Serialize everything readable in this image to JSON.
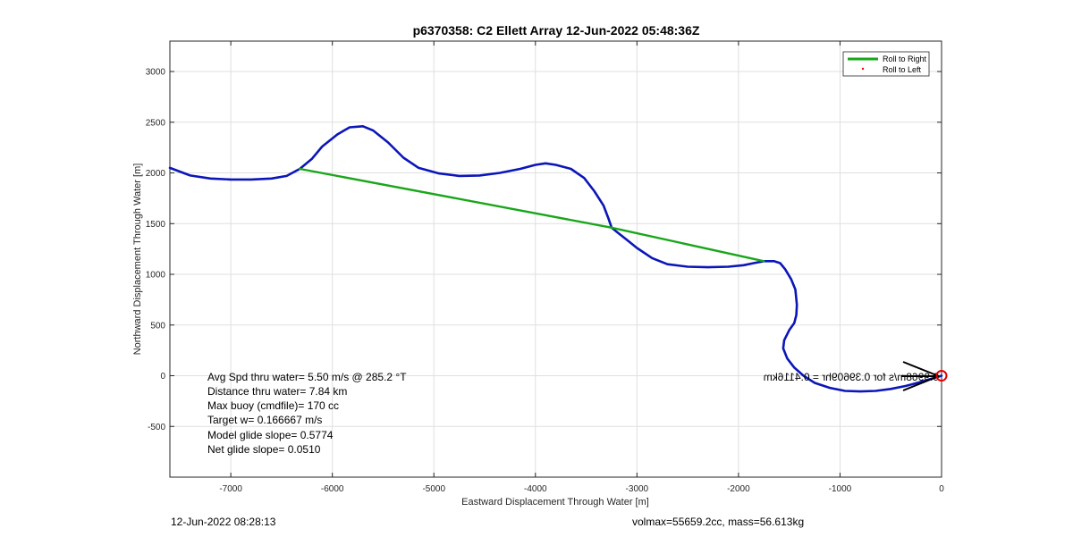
{
  "chart_data": {
    "type": "line",
    "title": "p6370358: C2 Ellett Array 12-Jun-2022 05:48:36Z",
    "xlabel": "Eastward Displacement Through Water [m]",
    "ylabel": "Northward Displacement Through Water [m]",
    "xlim": [
      -7600,
      0
    ],
    "ylim": [
      -1000,
      3300
    ],
    "xticks": [
      -7000,
      -6000,
      -5000,
      -4000,
      -3000,
      -2000,
      -1000,
      0
    ],
    "yticks": [
      -500,
      0,
      500,
      1000,
      1500,
      2000,
      2500,
      3000
    ],
    "grid": true,
    "legend_position": "top-right",
    "legend": [
      {
        "label": "Roll to Right",
        "color": "#1aa61a"
      },
      {
        "label": "Roll to Left",
        "color": "#ff0000"
      }
    ],
    "series": [
      {
        "color": "#0b16b8",
        "points": [
          [
            0,
            0
          ],
          [
            -100,
            -30
          ],
          [
            -200,
            -60
          ],
          [
            -350,
            -100
          ],
          [
            -500,
            -130
          ],
          [
            -650,
            -150
          ],
          [
            -800,
            -155
          ],
          [
            -950,
            -150
          ],
          [
            -1100,
            -120
          ],
          [
            -1250,
            -70
          ],
          [
            -1360,
            0
          ],
          [
            -1450,
            80
          ],
          [
            -1520,
            170
          ],
          [
            -1560,
            270
          ],
          [
            -1550,
            350
          ],
          [
            -1500,
            450
          ],
          [
            -1450,
            520
          ],
          [
            -1430,
            600
          ],
          [
            -1425,
            700
          ],
          [
            -1440,
            850
          ],
          [
            -1480,
            950
          ],
          [
            -1540,
            1050
          ],
          [
            -1590,
            1110
          ],
          [
            -1650,
            1130
          ],
          [
            -1750,
            1130
          ],
          [
            -1850,
            1110
          ],
          [
            -1950,
            1090
          ],
          [
            -2100,
            1075
          ],
          [
            -2300,
            1070
          ],
          [
            -2500,
            1075
          ],
          [
            -2700,
            1100
          ],
          [
            -2850,
            1160
          ],
          [
            -3000,
            1260
          ],
          [
            -3100,
            1340
          ],
          [
            -3200,
            1420
          ],
          [
            -3250,
            1460
          ],
          [
            -3280,
            1550
          ],
          [
            -3330,
            1680
          ],
          [
            -3420,
            1820
          ],
          [
            -3520,
            1950
          ],
          [
            -3650,
            2040
          ],
          [
            -3800,
            2080
          ],
          [
            -3900,
            2095
          ],
          [
            -4000,
            2080
          ],
          [
            -4150,
            2040
          ],
          [
            -4350,
            2000
          ],
          [
            -4550,
            1975
          ],
          [
            -4750,
            1970
          ],
          [
            -4950,
            1995
          ],
          [
            -5150,
            2050
          ],
          [
            -5300,
            2150
          ],
          [
            -5450,
            2300
          ],
          [
            -5600,
            2420
          ],
          [
            -5700,
            2460
          ],
          [
            -5830,
            2450
          ],
          [
            -5950,
            2380
          ],
          [
            -6100,
            2260
          ],
          [
            -6200,
            2140
          ],
          [
            -6320,
            2040
          ],
          [
            -6450,
            1970
          ],
          [
            -6600,
            1945
          ],
          [
            -6800,
            1935
          ],
          [
            -7000,
            1935
          ],
          [
            -7200,
            1945
          ],
          [
            -7400,
            1975
          ],
          [
            -7600,
            2050
          ]
        ]
      },
      {
        "name": "Roll to Right",
        "color": "#1aa61a",
        "points": [
          [
            -6320,
            2040
          ],
          [
            -3250,
            1460
          ],
          [
            -1750,
            1130
          ]
        ]
      }
    ],
    "surface_marker": {
      "x": 0,
      "y": 0,
      "color": "#dd0000"
    },
    "annotations": {
      "stats": [
        "Avg Spd thru water=  5.50 m/s @ 285.2 °T",
        "Distance thru water=  7.84 km",
        "Max buoy (cmdfile)= 170 cc",
        "Target w= 0.166667 m/s",
        "Model glide slope= 0.5774",
        "Net glide slope= 0.0510"
      ],
      "mirrored_text": "0.9968m/s for 0.39609hr = 0.4116km"
    }
  },
  "footer": {
    "timestamp": "12-Jun-2022 08:28:13",
    "summary": "volmax=55659.2cc, mass=56.613kg"
  }
}
